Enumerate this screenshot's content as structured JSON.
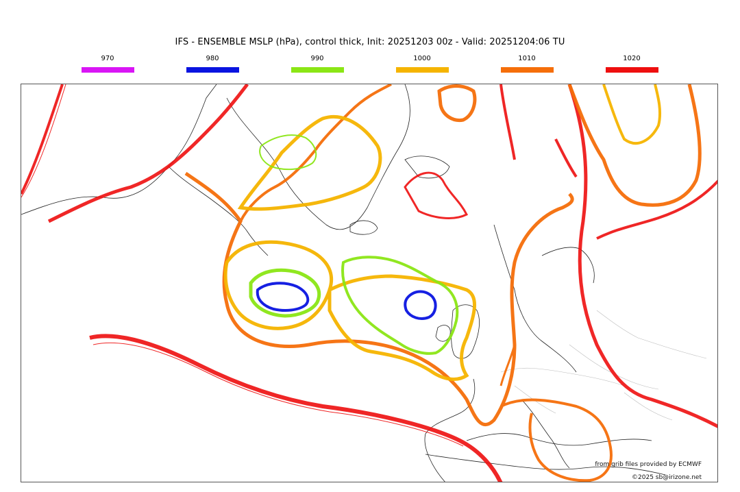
{
  "title": "IFS - ENSEMBLE MSLP (hPa), control thick, Init: 20251203 00z - Valid: 20251204:06 TU",
  "legend": [
    {
      "label": "970",
      "color": "#d915f5"
    },
    {
      "label": "980",
      "color": "#0a14e0"
    },
    {
      "label": "990",
      "color": "#8be615"
    },
    {
      "label": "1000",
      "color": "#f5b400"
    },
    {
      "label": "1010",
      "color": "#f56e0a"
    },
    {
      "label": "1020",
      "color": "#ee0f0f"
    }
  ],
  "credits": {
    "source": "from grib files provided by ECMWF",
    "copyright": "©2025 sb@irizone.net"
  },
  "map": {
    "region": "North Atlantic and Europe",
    "features": [
      "coastlines",
      "country-borders",
      "isobar-contours"
    ],
    "lows": [
      {
        "name": "low-west-atlantic",
        "isobars": [
          "980",
          "990",
          "1000",
          "1010"
        ]
      },
      {
        "name": "low-north-sea",
        "isobars": [
          "980",
          "990",
          "1000",
          "1010"
        ]
      }
    ],
    "highs": [
      {
        "name": "high-azores",
        "isobars": [
          "1020"
        ]
      },
      {
        "name": "high-greenland",
        "isobars": [
          "1020"
        ]
      }
    ]
  }
}
